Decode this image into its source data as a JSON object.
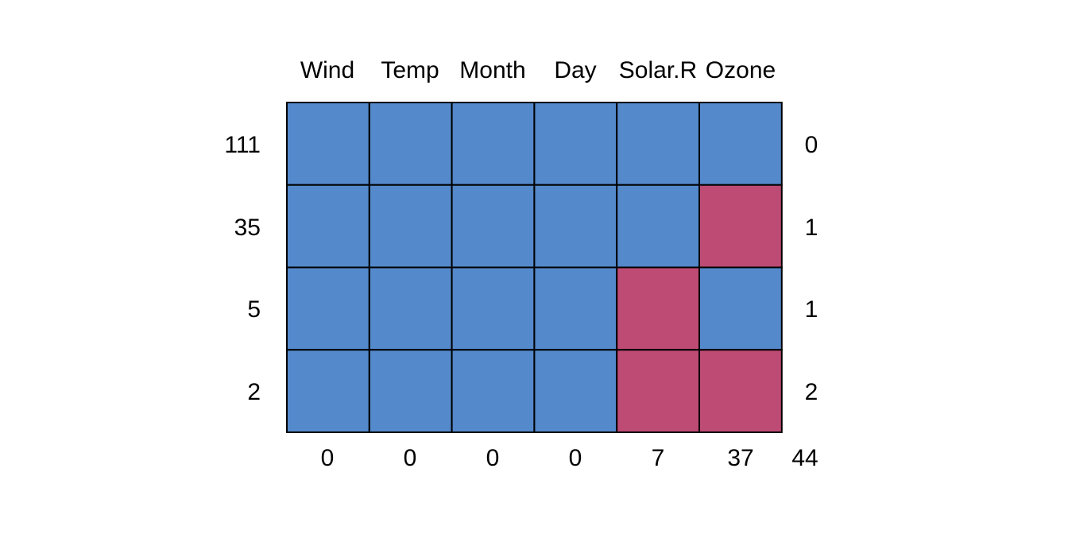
{
  "chart_data": {
    "type": "heatmap",
    "variables": [
      "Wind",
      "Temp",
      "Month",
      "Day",
      "Solar.R",
      "Ozone"
    ],
    "row_counts": [
      "111",
      "35",
      "5",
      "2"
    ],
    "row_missing_totals": [
      "0",
      "1",
      "1",
      "2"
    ],
    "column_missing_counts": [
      "0",
      "0",
      "0",
      "0",
      "7",
      "37"
    ],
    "total_missing": "44",
    "patterns": [
      [
        1,
        1,
        1,
        1,
        1,
        1
      ],
      [
        1,
        1,
        1,
        1,
        1,
        0
      ],
      [
        1,
        1,
        1,
        1,
        0,
        1
      ],
      [
        1,
        1,
        1,
        1,
        0,
        0
      ]
    ],
    "colors": {
      "observed": "#5489CB",
      "missing": "#BE4B74"
    }
  }
}
